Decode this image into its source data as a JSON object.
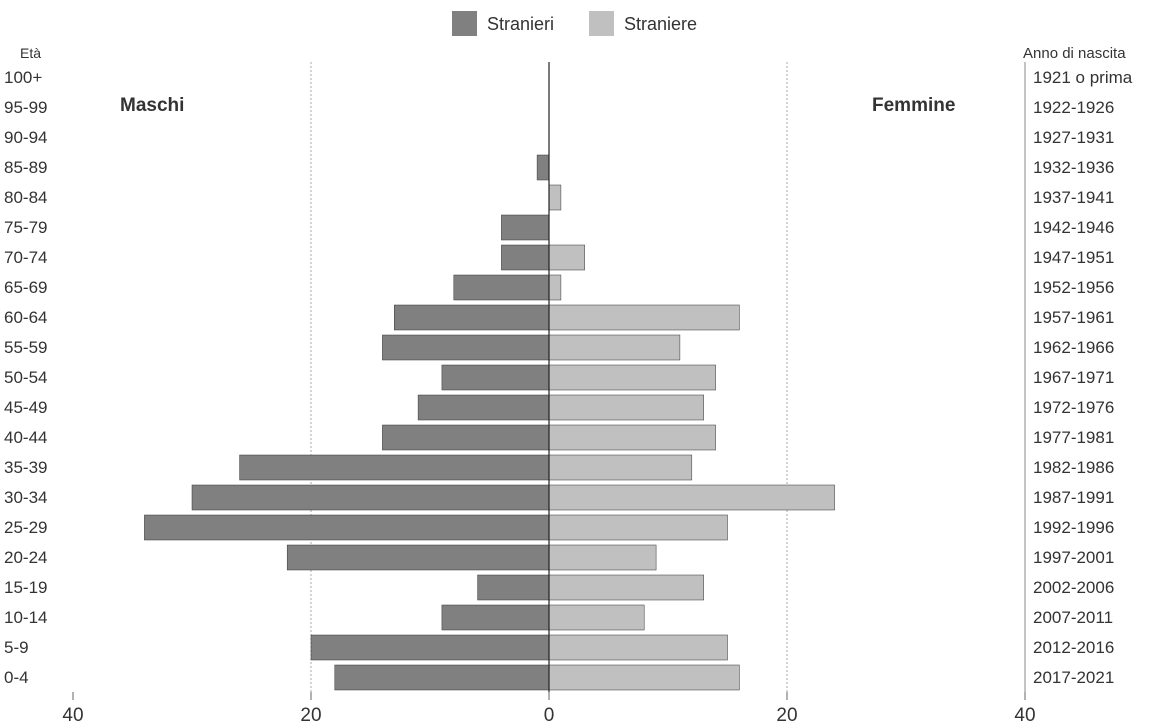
{
  "chart_data": {
    "type": "bar",
    "orientation": "horizontal-population-pyramid",
    "legend": {
      "position": "top-center",
      "items": [
        {
          "name": "Stranieri",
          "color": "#808080"
        },
        {
          "name": "Straniere",
          "color": "#c0c0c0"
        }
      ]
    },
    "left_axis_title": "Età",
    "right_axis_title": "Anno di nascita",
    "left_side_label": "Maschi",
    "right_side_label": "Femmine",
    "age_groups": [
      "100+",
      "95-99",
      "90-94",
      "85-89",
      "80-84",
      "75-79",
      "70-74",
      "65-69",
      "60-64",
      "55-59",
      "50-54",
      "45-49",
      "40-44",
      "35-39",
      "30-34",
      "25-29",
      "20-24",
      "15-19",
      "10-14",
      "5-9",
      "0-4"
    ],
    "birth_years": [
      "1921 o prima",
      "1922-1926",
      "1927-1931",
      "1932-1936",
      "1937-1941",
      "1942-1946",
      "1947-1951",
      "1952-1956",
      "1957-1961",
      "1962-1966",
      "1967-1971",
      "1972-1976",
      "1977-1981",
      "1982-1986",
      "1987-1991",
      "1992-1996",
      "1997-2001",
      "2002-2006",
      "2007-2011",
      "2012-2016",
      "2017-2021"
    ],
    "series": [
      {
        "name": "Stranieri",
        "side": "left",
        "color": "#808080",
        "values": [
          0,
          0,
          0,
          1,
          0,
          4,
          4,
          8,
          13,
          14,
          9,
          11,
          14,
          26,
          30,
          34,
          22,
          6,
          9,
          20,
          18
        ]
      },
      {
        "name": "Straniere",
        "side": "right",
        "color": "#c0c0c0",
        "values": [
          0,
          0,
          0,
          0,
          1,
          0,
          3,
          1,
          16,
          11,
          14,
          13,
          14,
          12,
          24,
          15,
          9,
          13,
          8,
          15,
          16
        ]
      }
    ],
    "x_ticks": [
      "40",
      "20",
      "0",
      "20",
      "40"
    ],
    "xlim": [
      -40,
      40
    ],
    "grid": "dotted vertical at ±20"
  }
}
